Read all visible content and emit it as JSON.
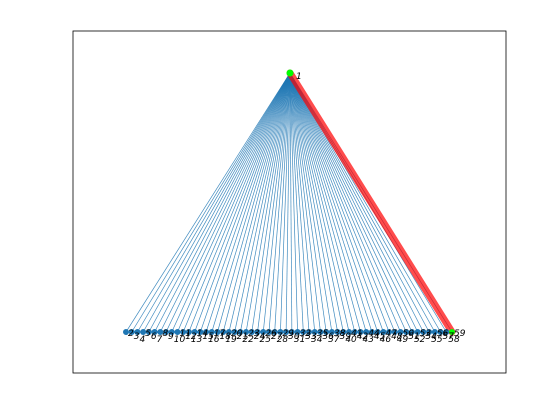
{
  "graph": {
    "type": "star-graph",
    "hub": {
      "label": "1"
    },
    "leaf_count": 58,
    "leaf_label_start": 2,
    "path_endpoint_label": "59",
    "colors": {
      "background": "#ffffff",
      "axes_frame": "#000000",
      "edge": "#1f77b4",
      "node": "#1f77b4",
      "highlight_edge": "#ff0000",
      "highlight_node": "#00ff00",
      "label": "#000000"
    }
  }
}
